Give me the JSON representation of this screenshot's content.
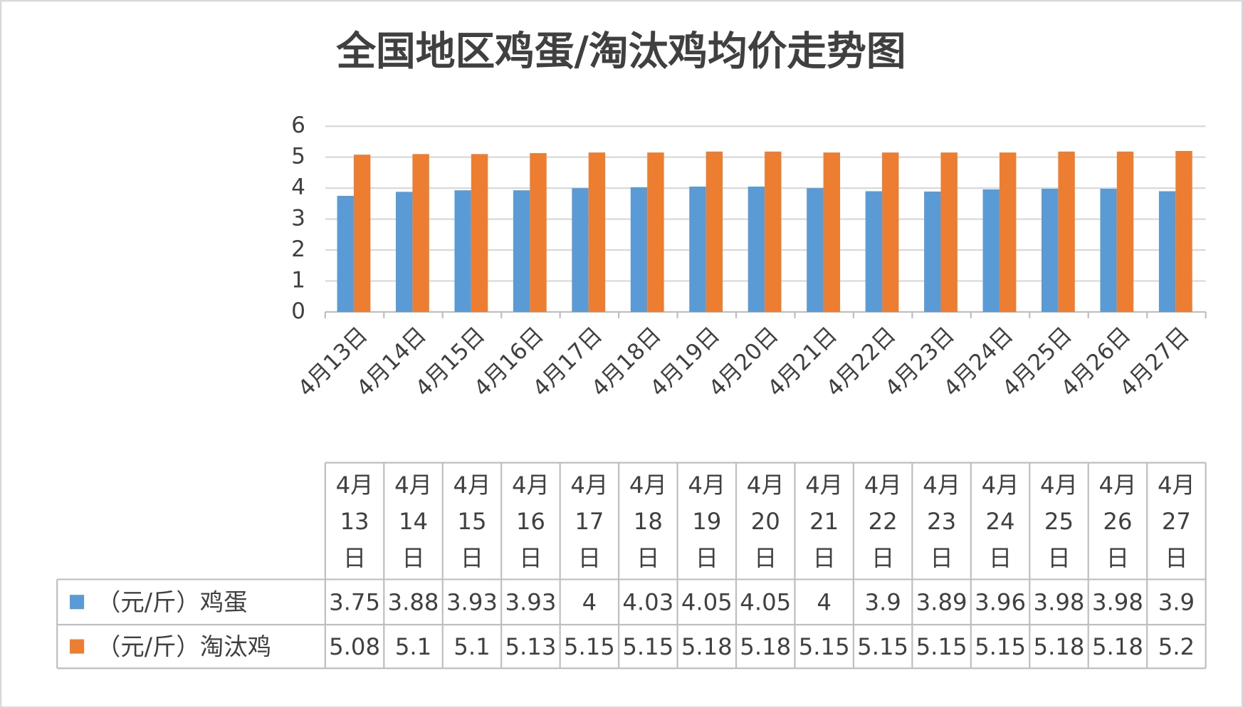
{
  "chart_data": {
    "type": "bar",
    "title": "全国地区鸡蛋/淘汰鸡均价走势图",
    "categories": [
      "4月13日",
      "4月14日",
      "4月15日",
      "4月16日",
      "4月17日",
      "4月18日",
      "4月19日",
      "4月20日",
      "4月21日",
      "4月22日",
      "4月23日",
      "4月24日",
      "4月25日",
      "4月26日",
      "4月27日"
    ],
    "series": [
      {
        "name": "（元/斤）鸡蛋",
        "color": "#5b9bd5",
        "values": [
          3.75,
          3.88,
          3.93,
          3.93,
          4,
          4.03,
          4.05,
          4.05,
          4,
          3.9,
          3.89,
          3.96,
          3.98,
          3.98,
          3.9
        ]
      },
      {
        "name": "（元/斤）淘汰鸡",
        "color": "#ed7d31",
        "values": [
          5.08,
          5.1,
          5.1,
          5.13,
          5.15,
          5.15,
          5.18,
          5.18,
          5.15,
          5.15,
          5.15,
          5.15,
          5.18,
          5.18,
          5.2
        ]
      }
    ],
    "ylim": [
      0,
      6
    ],
    "yticks": [
      0,
      1,
      2,
      3,
      4,
      5,
      6
    ],
    "grid": true,
    "data_table": true
  }
}
